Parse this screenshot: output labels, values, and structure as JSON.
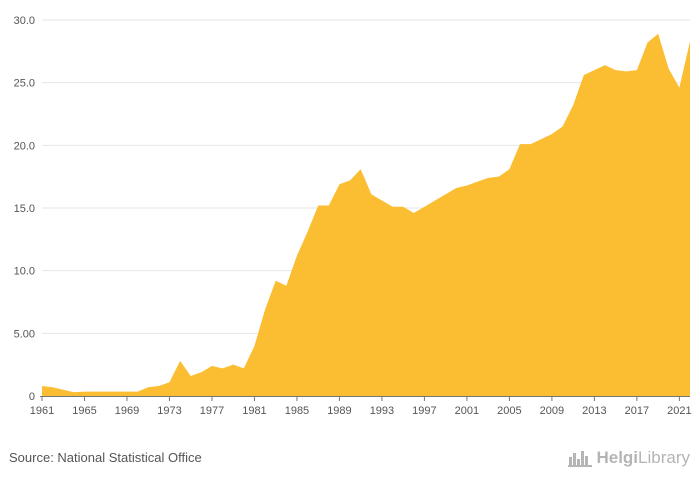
{
  "chart_data": {
    "type": "area",
    "x": [
      1961,
      1962,
      1963,
      1964,
      1965,
      1966,
      1967,
      1968,
      1969,
      1970,
      1971,
      1972,
      1973,
      1974,
      1975,
      1976,
      1977,
      1978,
      1979,
      1980,
      1981,
      1982,
      1983,
      1984,
      1985,
      1986,
      1987,
      1988,
      1989,
      1990,
      1991,
      1992,
      1993,
      1994,
      1995,
      1996,
      1997,
      1998,
      1999,
      2000,
      2001,
      2002,
      2003,
      2004,
      2005,
      2006,
      2007,
      2008,
      2009,
      2010,
      2011,
      2012,
      2013,
      2014,
      2015,
      2016,
      2017,
      2018,
      2019,
      2020,
      2021,
      2022
    ],
    "series": [
      {
        "values": [
          0.8,
          0.7,
          0.5,
          0.3,
          0.35,
          0.35,
          0.35,
          0.35,
          0.35,
          0.35,
          0.7,
          0.8,
          1.1,
          2.8,
          1.6,
          1.9,
          2.4,
          2.2,
          2.5,
          2.2,
          4.0,
          6.9,
          9.2,
          8.8,
          11.2,
          13.1,
          15.2,
          15.2,
          16.9,
          17.2,
          18.1,
          16.1,
          15.6,
          15.1,
          15.1,
          14.6,
          15.1,
          15.6,
          16.1,
          16.6,
          16.8,
          17.1,
          17.4,
          17.5,
          18.1,
          20.1,
          20.1,
          20.5,
          20.9,
          21.5,
          23.2,
          25.6,
          26.0,
          26.4,
          26.0,
          25.9,
          26.0,
          28.2,
          28.9,
          26.1,
          24.6,
          28.3
        ]
      }
    ],
    "x_tick_labels": [
      "1961",
      "1965",
      "1969",
      "1973",
      "1977",
      "1981",
      "1985",
      "1989",
      "1993",
      "1997",
      "2001",
      "2005",
      "2009",
      "2013",
      "2017",
      "2021"
    ],
    "y_tick_labels": [
      "0",
      "5.00",
      "10.0",
      "15.0",
      "20.0",
      "25.0",
      "30.0"
    ],
    "y_ticks": [
      0,
      5,
      10,
      15,
      20,
      25,
      30
    ],
    "ylim": [
      0,
      30
    ],
    "xlim": [
      1961,
      2022
    ],
    "grid": "horizontal",
    "fill_color": "#fbbd31",
    "axis_color": "#777777",
    "grid_color": "#e6e6e6"
  },
  "footer": {
    "source": "Source: National Statistical Office",
    "logo_helgi": "Helgi",
    "logo_library": "Library"
  }
}
